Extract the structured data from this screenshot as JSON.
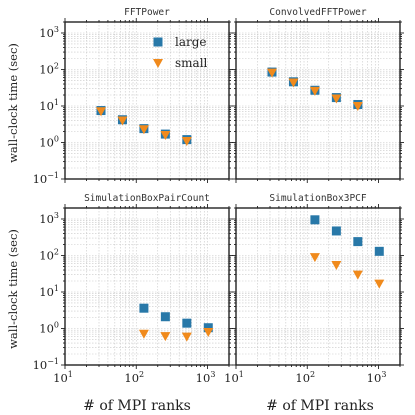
{
  "chart_data": [
    {
      "type": "scatter",
      "title": "FFTPower",
      "xscale": "log",
      "yscale": "log",
      "xlim": [
        10,
        2000
      ],
      "ylim": [
        0.1,
        2000
      ],
      "grid": true,
      "legend": {
        "position": "top-right",
        "entries": [
          "large",
          "small"
        ]
      },
      "series": [
        {
          "name": "large",
          "marker": "square",
          "color": "#2878a8",
          "x": [
            32,
            64,
            128,
            256,
            512
          ],
          "y": [
            7.5,
            4.2,
            2.4,
            1.7,
            1.2
          ]
        },
        {
          "name": "small",
          "marker": "triangle-down",
          "color": "#f08a1c",
          "x": [
            32,
            64,
            128,
            256,
            512
          ],
          "y": [
            7.2,
            4.0,
            2.3,
            1.6,
            1.1
          ]
        }
      ]
    },
    {
      "type": "scatter",
      "title": "ConvolvedFFTPower",
      "xscale": "log",
      "yscale": "log",
      "xlim": [
        10,
        2000
      ],
      "ylim": [
        0.1,
        2000
      ],
      "grid": true,
      "series": [
        {
          "name": "large",
          "marker": "square",
          "color": "#2878a8",
          "x": [
            32,
            64,
            128,
            256,
            512
          ],
          "y": [
            85,
            46,
            27,
            17,
            11
          ]
        },
        {
          "name": "small",
          "marker": "triangle-down",
          "color": "#f08a1c",
          "x": [
            32,
            64,
            128,
            256,
            512
          ],
          "y": [
            82,
            44,
            26,
            16,
            10
          ]
        }
      ]
    },
    {
      "type": "scatter",
      "title": "SimulationBoxPairCount",
      "xscale": "log",
      "yscale": "log",
      "xlim": [
        10,
        2000
      ],
      "ylim": [
        0.1,
        2000
      ],
      "grid": true,
      "series": [
        {
          "name": "large",
          "marker": "square",
          "color": "#2878a8",
          "x": [
            128,
            256,
            512,
            1024
          ],
          "y": [
            3.6,
            2.1,
            1.4,
            1.05
          ]
        },
        {
          "name": "small",
          "marker": "triangle-down",
          "color": "#f08a1c",
          "x": [
            128,
            256,
            512,
            1024
          ],
          "y": [
            0.72,
            0.62,
            0.6,
            0.8
          ]
        }
      ]
    },
    {
      "type": "scatter",
      "title": "SimulationBox3PCF",
      "xscale": "log",
      "yscale": "log",
      "xlim": [
        10,
        2000
      ],
      "ylim": [
        0.1,
        2000
      ],
      "grid": true,
      "series": [
        {
          "name": "large",
          "marker": "square",
          "color": "#2878a8",
          "x": [
            128,
            256,
            512,
            1024
          ],
          "y": [
            950,
            470,
            240,
            130
          ]
        },
        {
          "name": "small",
          "marker": "triangle-down",
          "color": "#f08a1c",
          "x": [
            128,
            256,
            512,
            1024
          ],
          "y": [
            90,
            55,
            30,
            17
          ]
        }
      ]
    }
  ],
  "axes": {
    "ylabel": "wall-clock time (sec)",
    "xlabel": "# of MPI ranks",
    "y_ticks": [
      {
        "v": 0.1,
        "base": "10",
        "exp": "−1"
      },
      {
        "v": 1,
        "base": "10",
        "exp": "0"
      },
      {
        "v": 10,
        "base": "10",
        "exp": "1"
      },
      {
        "v": 100,
        "base": "10",
        "exp": "2"
      },
      {
        "v": 1000,
        "base": "10",
        "exp": "3"
      }
    ],
    "x_ticks": [
      {
        "v": 10,
        "base": "10",
        "exp": "1"
      },
      {
        "v": 100,
        "base": "10",
        "exp": "2"
      },
      {
        "v": 1000,
        "base": "10",
        "exp": "3"
      }
    ]
  }
}
